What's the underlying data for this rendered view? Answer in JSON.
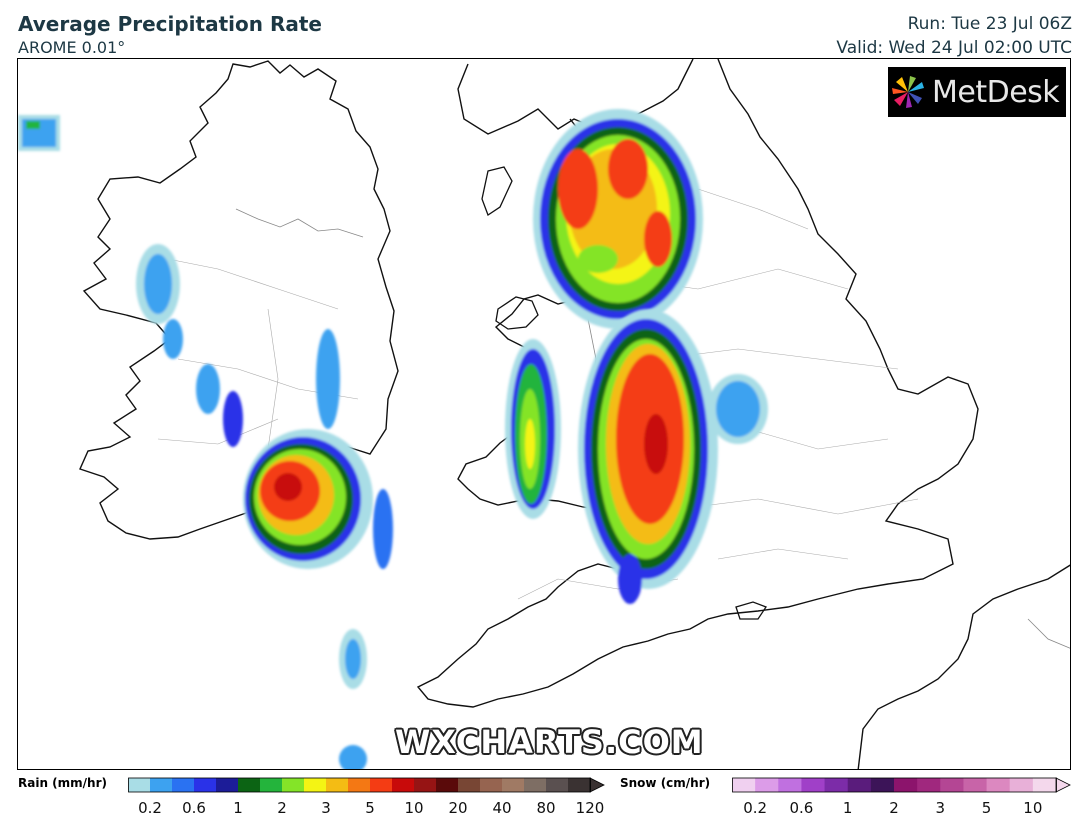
{
  "header": {
    "title": "Average Precipitation Rate",
    "model": "AROME 0.01°",
    "run": "Run: Tue 23 Jul 06Z",
    "valid": "Valid: Wed 24 Jul 02:00 UTC"
  },
  "logo": {
    "text": "MetDesk",
    "icon": "pinwheel-icon"
  },
  "watermark": "WXCHARTS.COM",
  "legend": {
    "rain": {
      "label": "Rain (mm/hr)",
      "colors": [
        "#a9dde6",
        "#3da2f0",
        "#2a72f2",
        "#2a32e8",
        "#1c1c98",
        "#0c6414",
        "#24b43c",
        "#84e428",
        "#f4f414",
        "#f4bc14",
        "#f47814",
        "#f43c14",
        "#c80a0a",
        "#961414",
        "#5a0a0a",
        "#784634",
        "#966450",
        "#a07a64",
        "#7e6e64",
        "#5a5050",
        "#3a3232"
      ],
      "ticks": [
        "0.2",
        "0.6",
        "1",
        "2",
        "3",
        "5",
        "10",
        "20",
        "40",
        "80",
        "120"
      ]
    },
    "snow": {
      "label": "Snow (cm/hr)",
      "colors": [
        "#f0d0f0",
        "#dc9ce8",
        "#c070e0",
        "#a040c8",
        "#7c2ca8",
        "#5a1c7c",
        "#3c1458",
        "#8c146c",
        "#a0287e",
        "#b44694",
        "#c864a8",
        "#dc88c0",
        "#e8b0d8",
        "#f4d8ec"
      ],
      "ticks": [
        "0.2",
        "0.6",
        "1",
        "2",
        "3",
        "5",
        "10"
      ]
    }
  }
}
